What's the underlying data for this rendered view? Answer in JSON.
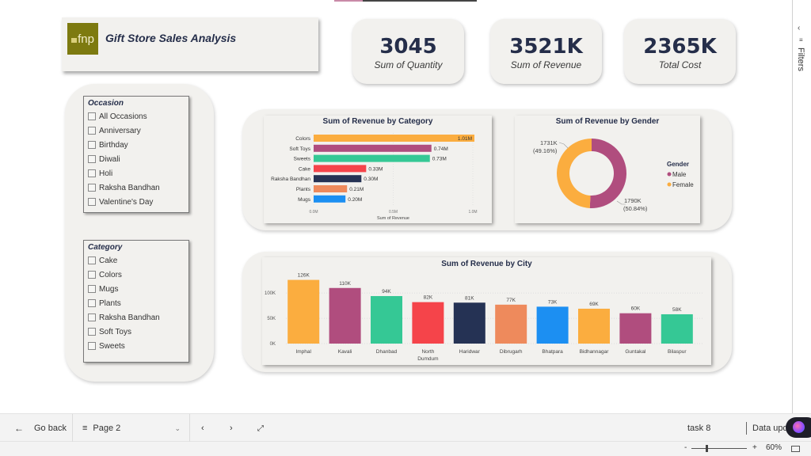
{
  "report": {
    "title": "Gift Store Sales Analysis",
    "logo_text": "fnp",
    "brand_color": "#7d7a10"
  },
  "kpis": [
    {
      "value": "3045",
      "label": "Sum of Quantity"
    },
    {
      "value": "3521K",
      "label": "Sum of Revenue"
    },
    {
      "value": "2365K",
      "label": "Total Cost"
    }
  ],
  "slicers": {
    "occasion": {
      "title": "Occasion",
      "items": [
        "All Occasions",
        "Anniversary",
        "Birthday",
        "Diwali",
        "Holi",
        "Raksha Bandhan",
        "Valentine's Day"
      ]
    },
    "category": {
      "title": "Category",
      "items": [
        "Cake",
        "Colors",
        "Mugs",
        "Plants",
        "Raksha Bandhan",
        "Soft Toys",
        "Sweets"
      ]
    }
  },
  "filters_pane": {
    "label": "Filters"
  },
  "footer": {
    "go_back": "Go back",
    "page": "Page 2",
    "task": "task 8",
    "data_updated": "Data upd",
    "zoom_level": "60%",
    "zoom_minus": "-",
    "zoom_plus": "+"
  },
  "chart_data": [
    {
      "type": "bar",
      "orientation": "horizontal",
      "title": "Sum of Revenue by Category",
      "xlabel": "Sum of Revenue",
      "ylabel": "",
      "categories": [
        "Colors",
        "Soft Toys",
        "Sweets",
        "Cake",
        "Raksha Bandhan",
        "Plants",
        "Mugs"
      ],
      "values": [
        1.01,
        0.74,
        0.73,
        0.33,
        0.3,
        0.21,
        0.2
      ],
      "data_labels": [
        "1.01M",
        "0.74M",
        "0.73M",
        "0.33M",
        "0.30M",
        "0.21M",
        "0.20M"
      ],
      "colors": [
        "#fbad3f",
        "#b04d7e",
        "#35c895",
        "#f5444a",
        "#253254",
        "#ee8a5c",
        "#1c8ff2"
      ],
      "xlim": [
        0,
        1.0
      ],
      "xticks": [
        "0.0M",
        "0.5M",
        "1.0M"
      ],
      "unit": "M",
      "grid": true
    },
    {
      "type": "pie",
      "variant": "donut",
      "title": "Sum of Revenue by Gender",
      "legend_title": "Gender",
      "legend_position": "right",
      "categories": [
        "Male",
        "Female"
      ],
      "values": [
        1790,
        1731
      ],
      "percentages": [
        50.84,
        49.16
      ],
      "data_labels": [
        "1790K\n(50.84%)",
        "1731K\n(49.16%)"
      ],
      "colors": [
        "#b04d7e",
        "#fbad3f"
      ]
    },
    {
      "type": "bar",
      "orientation": "vertical",
      "title": "Sum of Revenue by City",
      "xlabel": "",
      "ylabel": "",
      "categories": [
        "Imphal",
        "Kavali",
        "Dhanbad",
        "North Dumdum",
        "Haridwar",
        "Dibrugarh",
        "Bhatpara",
        "Bidhannagar",
        "Guntakal",
        "Bilaspur"
      ],
      "values": [
        126,
        110,
        94,
        82,
        81,
        77,
        73,
        69,
        60,
        58
      ],
      "data_labels": [
        "126K",
        "110K",
        "94K",
        "82K",
        "81K",
        "77K",
        "73K",
        "69K",
        "60K",
        "58K"
      ],
      "colors": [
        "#fbad3f",
        "#b04d7e",
        "#35c895",
        "#f5444a",
        "#253254",
        "#ee8a5c",
        "#1c8ff2",
        "#fbad3f",
        "#b04d7e",
        "#35c895"
      ],
      "ylim": [
        0,
        130
      ],
      "yticks": [
        "0K",
        "50K",
        "100K"
      ],
      "unit": "K",
      "grid": true
    }
  ]
}
